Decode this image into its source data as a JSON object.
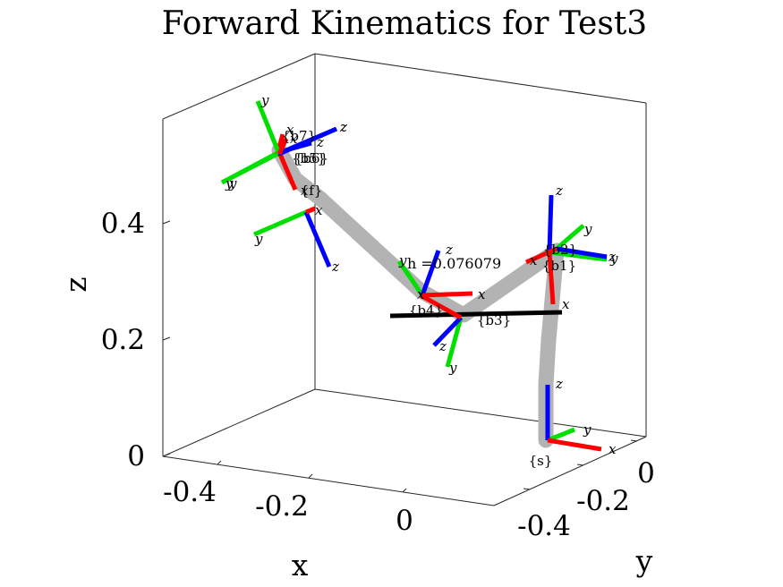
{
  "chart_data": {
    "type": "3d-line",
    "title": "Forward Kinematics for Test3",
    "xlabel": "x",
    "ylabel": "y",
    "zlabel": "z",
    "xticks": [
      "-0.4",
      "-0.2",
      "0"
    ],
    "yticks": [
      "-0.4",
      "-0.2",
      "0"
    ],
    "zticks": [
      "0",
      "0.2",
      "0.4"
    ],
    "grid": false,
    "box": true,
    "link_color": "#b3b3b3",
    "axis_colors": {
      "x": "#ff0000",
      "y": "#00e000",
      "z": "#0000ff"
    },
    "annotation": "h =0.076079",
    "frames": [
      {
        "name": "{s}",
        "axis_labels": [
          "x",
          "y",
          "z"
        ]
      },
      {
        "name": "{b1}",
        "axis_labels": [
          "x",
          "y",
          "z"
        ]
      },
      {
        "name": "{b2}",
        "axis_labels": [
          "x",
          "y",
          "z"
        ]
      },
      {
        "name": "{b3}",
        "axis_labels": [
          "x",
          "y",
          "z"
        ]
      },
      {
        "name": "{b4}",
        "axis_labels": [
          "x",
          "y",
          "z"
        ]
      },
      {
        "name": "{b5}",
        "axis_labels": [
          "x",
          "y",
          "z"
        ]
      },
      {
        "name": "{b6}",
        "axis_labels": [
          "x",
          "y",
          "z"
        ]
      },
      {
        "name": "{b7}",
        "axis_labels": [
          "x",
          "y",
          "z"
        ]
      },
      {
        "name": "{f}",
        "axis_labels": [
          "x",
          "y",
          "z"
        ]
      }
    ]
  }
}
